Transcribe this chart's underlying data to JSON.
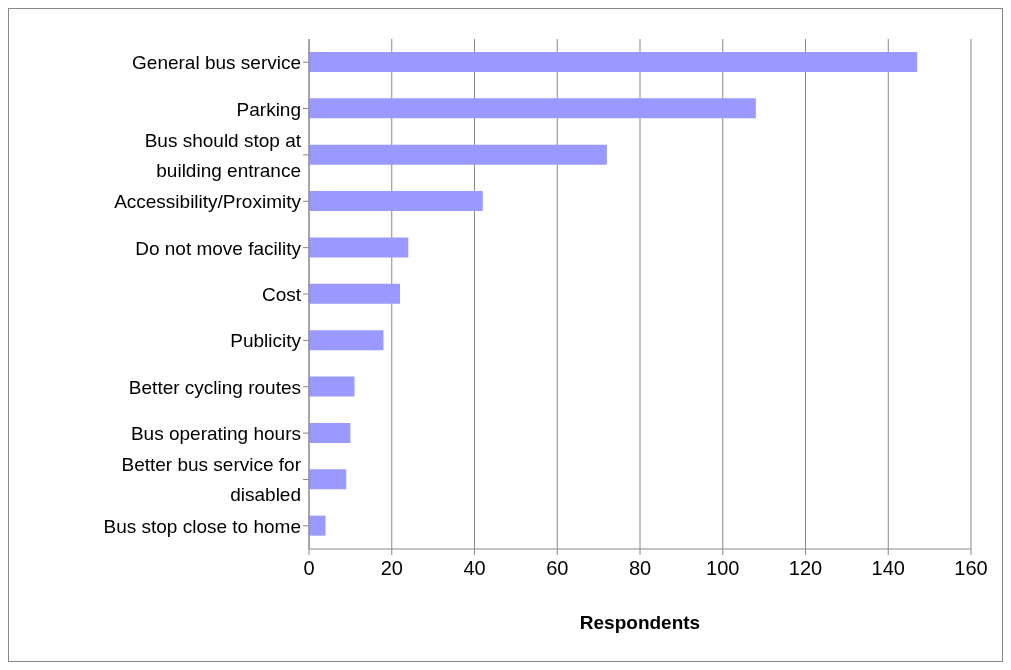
{
  "chart_data": {
    "type": "bar",
    "orientation": "horizontal",
    "xlabel": "Respondents",
    "categories": [
      "General bus service",
      "Parking",
      "Bus should stop at building entrance",
      "Accessibility/Proximity",
      "Do not move facility",
      "Cost",
      "Publicity",
      "Better cycling routes",
      "Bus operating hours",
      "Better bus service for disabled",
      "Bus stop close to home"
    ],
    "values": [
      147,
      108,
      72,
      42,
      24,
      22,
      18,
      11,
      10,
      9,
      4
    ],
    "color": "#9999ff",
    "xlim": [
      0,
      160
    ],
    "xticks": [
      0,
      20,
      40,
      60,
      80,
      100,
      120,
      140,
      160
    ],
    "grid": "x",
    "legend": false
  }
}
